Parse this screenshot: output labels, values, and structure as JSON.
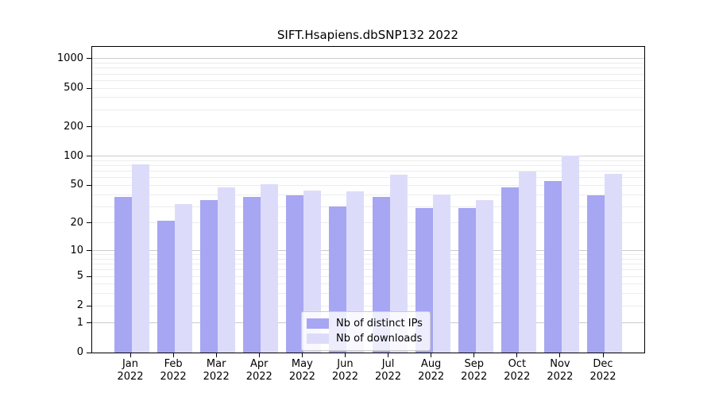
{
  "chart_data": {
    "type": "bar",
    "title": "SIFT.Hsapiens.dbSNP132 2022",
    "categories": [
      "Jan",
      "Feb",
      "Mar",
      "Apr",
      "May",
      "Jun",
      "Jul",
      "Aug",
      "Sep",
      "Oct",
      "Nov",
      "Dec"
    ],
    "x_year_label": "2022",
    "series": [
      {
        "id": "distinct-ips",
        "name": "Nb of distinct IPs",
        "color": "#a6a6f2",
        "values": [
          38,
          21,
          35,
          38,
          39,
          30,
          38,
          29,
          29,
          48,
          55,
          39
        ]
      },
      {
        "id": "downloads",
        "name": "Nb of downloads",
        "color": "#dcdcfa",
        "values": [
          82,
          32,
          48,
          51,
          44,
          43,
          65,
          40,
          35,
          70,
          102,
          66
        ]
      }
    ],
    "y_ticks": [
      0,
      1,
      2,
      5,
      10,
      20,
      50,
      100,
      200,
      500,
      1000
    ],
    "y_scale": "log1p",
    "ylim": [
      0,
      1348
    ],
    "grid": {
      "major": [
        1,
        10,
        100,
        1000
      ],
      "minor": [
        2,
        3,
        4,
        5,
        6,
        7,
        8,
        9,
        20,
        30,
        40,
        50,
        60,
        70,
        80,
        90,
        200,
        300,
        400,
        500,
        600,
        700,
        800,
        900
      ],
      "major_color": "#cccccc",
      "minor_color": "#ececec"
    },
    "legend_position": "lower center",
    "colors": {
      "axis": "#000000",
      "background": "#ffffff",
      "text": "#000000"
    }
  }
}
